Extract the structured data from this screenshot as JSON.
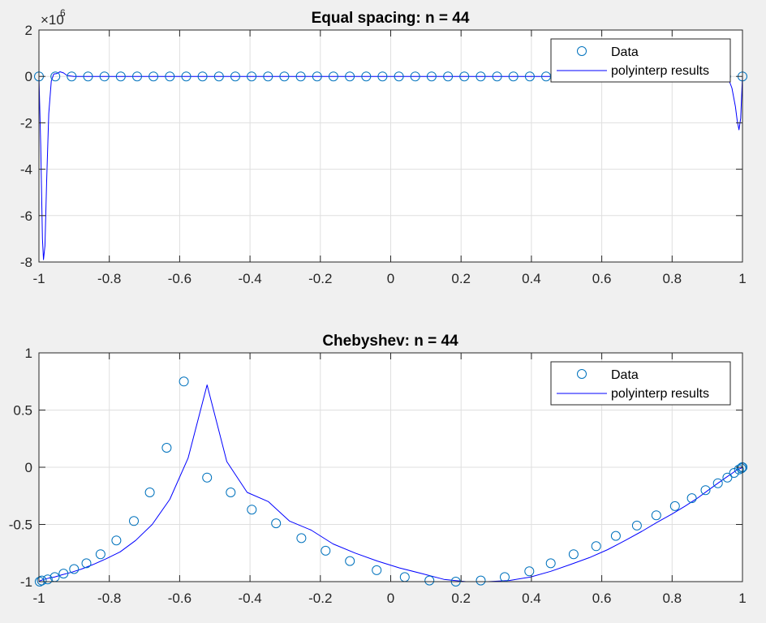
{
  "chart_data": [
    {
      "type": "line",
      "title": "Equal spacing: n = 44",
      "exponent_label": "×10",
      "exponent_power": "6",
      "xlim": [
        -1,
        1
      ],
      "ylim": [
        -8,
        2
      ],
      "y_scale": 1000000,
      "xticks": [
        "-1",
        "-0.8",
        "-0.6",
        "-0.4",
        "-0.2",
        "0",
        "0.2",
        "0.4",
        "0.6",
        "0.8",
        "1"
      ],
      "yticks": [
        "-8",
        "-6",
        "-4",
        "-2",
        "0",
        "2"
      ],
      "grid": true,
      "legend": {
        "position": "top-right",
        "entries": [
          "Data",
          "polyinterp results"
        ]
      },
      "colors": {
        "data": "#0072BD",
        "line": "#0000ff"
      },
      "data_x_spacing": "equal",
      "num_points": 44,
      "curve": [
        [
          -1.0,
          0
        ],
        [
          -0.995,
          -3.0
        ],
        [
          -0.99,
          -7.0
        ],
        [
          -0.987,
          -7.9
        ],
        [
          -0.983,
          -7.3
        ],
        [
          -0.978,
          -4.5
        ],
        [
          -0.972,
          -1.6
        ],
        [
          -0.965,
          -0.2
        ],
        [
          -0.958,
          0.1
        ],
        [
          -0.95,
          0.12
        ],
        [
          -0.94,
          0.2
        ],
        [
          -0.93,
          0.15
        ],
        [
          -0.92,
          0.04
        ],
        [
          -0.9,
          0
        ],
        [
          0.9,
          0
        ],
        [
          0.93,
          0.03
        ],
        [
          0.95,
          0.02
        ],
        [
          0.96,
          -0.1
        ],
        [
          0.97,
          -0.5
        ],
        [
          0.98,
          -1.3
        ],
        [
          0.985,
          -1.9
        ],
        [
          0.99,
          -2.3
        ],
        [
          0.995,
          -1.8
        ],
        [
          1.0,
          0
        ]
      ]
    },
    {
      "type": "line",
      "title": "Chebyshev: n = 44",
      "xlim": [
        -1,
        1
      ],
      "ylim": [
        -1,
        1
      ],
      "xticks": [
        "-1",
        "-0.8",
        "-0.6",
        "-0.4",
        "-0.2",
        "0",
        "0.2",
        "0.4",
        "0.6",
        "0.8",
        "1"
      ],
      "yticks": [
        "-1",
        "-0.5",
        "0",
        "0.5",
        "1"
      ],
      "grid": true,
      "legend": {
        "position": "top-right",
        "entries": [
          "Data",
          "polyinterp results"
        ]
      },
      "colors": {
        "data": "#0072BD",
        "line": "#0000ff"
      },
      "data": {
        "x": [
          -1.0,
          -0.995,
          -0.986,
          -0.973,
          -0.956,
          -0.934,
          -0.909,
          -0.879,
          -0.846,
          -0.809,
          -0.769,
          -0.725,
          -0.678,
          -0.628,
          -0.576,
          -0.522,
          -0.466,
          -0.408,
          -0.348,
          -0.288,
          -0.226,
          -0.164,
          -0.101,
          -0.038,
          0.025,
          0.089,
          0.151,
          0.214,
          0.276,
          0.337,
          0.397,
          0.455,
          0.511,
          0.565,
          0.617,
          0.667,
          0.714,
          0.758,
          0.799,
          0.837,
          0.872,
          0.903,
          0.93,
          0.953,
          0.972,
          0.986,
          0.995,
          1.0
        ],
        "y": [
          -1.0,
          -0.99,
          -0.98,
          -0.97,
          -0.96,
          -0.94,
          -0.92,
          -0.89,
          -0.85,
          -0.8,
          -0.74,
          -0.64,
          -0.5,
          -0.28,
          0.08,
          0.72,
          0.05,
          -0.22,
          -0.3,
          -0.47,
          -0.55,
          -0.67,
          -0.75,
          -0.82,
          -0.88,
          -0.93,
          -0.98,
          -1.0,
          -1.0,
          -0.99,
          -0.96,
          -0.91,
          -0.85,
          -0.79,
          -0.72,
          -0.64,
          -0.56,
          -0.48,
          -0.41,
          -0.34,
          -0.27,
          -0.2,
          -0.14,
          -0.09,
          -0.05,
          -0.02,
          -0.01,
          0.0
        ]
      },
      "markers": {
        "x": [
          -0.998,
          -0.992,
          -0.975,
          -0.955,
          -0.93,
          -0.9,
          -0.865,
          -0.825,
          -0.78,
          -0.73,
          -0.685,
          -0.637,
          -0.588,
          -0.522,
          -0.455,
          -0.395,
          -0.326,
          -0.254,
          -0.185,
          -0.116,
          -0.04,
          0.04,
          0.11,
          0.185,
          0.256,
          0.324,
          0.394,
          0.455,
          0.52,
          0.584,
          0.64,
          0.7,
          0.755,
          0.808,
          0.856,
          0.895,
          0.93,
          0.957,
          0.976,
          0.99,
          0.997,
          1.0,
          1.0,
          0.999
        ],
        "y": [
          -1.0,
          -0.99,
          -0.98,
          -0.96,
          -0.93,
          -0.89,
          -0.84,
          -0.76,
          -0.64,
          -0.47,
          -0.22,
          0.17,
          0.75,
          -0.09,
          -0.22,
          -0.37,
          -0.49,
          -0.62,
          -0.73,
          -0.82,
          -0.9,
          -0.96,
          -0.99,
          -1.0,
          -0.99,
          -0.96,
          -0.91,
          -0.84,
          -0.76,
          -0.69,
          -0.6,
          -0.51,
          -0.42,
          -0.34,
          -0.27,
          -0.2,
          -0.14,
          -0.09,
          -0.05,
          -0.02,
          -0.01,
          0.0,
          0.0,
          0.0
        ]
      }
    }
  ]
}
